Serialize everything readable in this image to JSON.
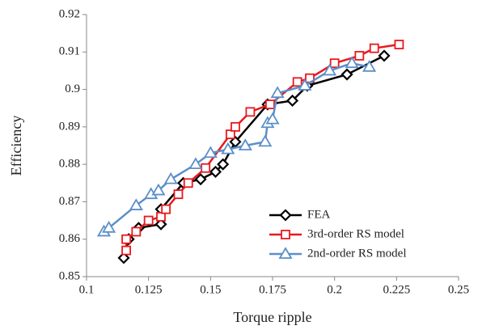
{
  "chart_data": {
    "type": "line",
    "x_label": "Torque ripple",
    "y_label": "Efficiency",
    "xlim": [
      0.1,
      0.25
    ],
    "xticks": [
      0.1,
      0.125,
      0.15,
      0.175,
      0.2,
      0.225,
      0.25
    ],
    "ylim": [
      0.85,
      0.92
    ],
    "yticks": [
      0.85,
      0.86,
      0.87,
      0.88,
      0.89,
      0.9,
      0.91,
      0.92
    ],
    "legend": "lower right",
    "grid": false,
    "series": [
      {
        "name": "FEA",
        "color": "#000000",
        "marker": "diamond",
        "x": [
          0.115,
          0.117,
          0.121,
          0.13,
          0.13,
          0.139,
          0.146,
          0.152,
          0.155,
          0.16,
          0.173,
          0.183,
          0.189,
          0.205,
          0.22
        ],
        "values": [
          0.855,
          0.86,
          0.863,
          0.864,
          0.868,
          0.875,
          0.876,
          0.878,
          0.88,
          0.886,
          0.896,
          0.897,
          0.901,
          0.904,
          0.909
        ]
      },
      {
        "name": "3rd-order RS model",
        "color": "#e8191e",
        "marker": "square",
        "x": [
          0.116,
          0.116,
          0.12,
          0.125,
          0.13,
          0.132,
          0.137,
          0.141,
          0.148,
          0.158,
          0.16,
          0.166,
          0.174,
          0.185,
          0.19,
          0.2,
          0.21,
          0.216,
          0.226
        ],
        "values": [
          0.857,
          0.86,
          0.862,
          0.865,
          0.866,
          0.868,
          0.872,
          0.875,
          0.879,
          0.888,
          0.89,
          0.894,
          0.896,
          0.902,
          0.903,
          0.907,
          0.909,
          0.911,
          0.912
        ]
      },
      {
        "name": "2nd-order RS model",
        "color": "#5b8fc9",
        "marker": "triangle",
        "x": [
          0.107,
          0.109,
          0.12,
          0.126,
          0.129,
          0.134,
          0.144,
          0.15,
          0.157,
          0.164,
          0.172,
          0.173,
          0.175,
          0.177,
          0.188,
          0.198,
          0.207,
          0.214
        ],
        "values": [
          0.862,
          0.863,
          0.869,
          0.872,
          0.873,
          0.876,
          0.88,
          0.883,
          0.884,
          0.885,
          0.886,
          0.891,
          0.892,
          0.899,
          0.901,
          0.905,
          0.907,
          0.906
        ]
      }
    ]
  }
}
